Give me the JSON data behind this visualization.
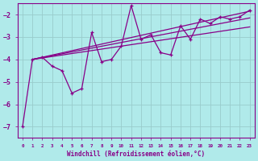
{
  "xlabel": "Windchill (Refroidissement éolien,°C)",
  "background_color": "#b0eaea",
  "line_color": "#880088",
  "grid_color": "#99cccc",
  "x_values": [
    0,
    1,
    2,
    3,
    4,
    5,
    6,
    7,
    8,
    9,
    10,
    11,
    12,
    13,
    14,
    15,
    16,
    17,
    18,
    19,
    20,
    21,
    22,
    23
  ],
  "line_main": [
    -7.0,
    -4.0,
    -3.9,
    -4.3,
    -4.5,
    -5.5,
    -5.3,
    -2.8,
    -4.1,
    -4.0,
    -3.4,
    -1.6,
    -3.1,
    -2.9,
    -3.7,
    -3.8,
    -2.5,
    -3.1,
    -2.2,
    -2.4,
    -2.1,
    -2.2,
    -2.1,
    -1.8
  ],
  "trend1_x": [
    1,
    23
  ],
  "trend1_y": [
    -4.0,
    -1.85
  ],
  "trend2_x": [
    1,
    23
  ],
  "trend2_y": [
    -4.0,
    -2.15
  ],
  "trend3_x": [
    1,
    23
  ],
  "trend3_y": [
    -4.0,
    -2.55
  ],
  "ylim": [
    -7.5,
    -1.5
  ],
  "xlim": [
    -0.5,
    23.5
  ],
  "yticks": [
    -7,
    -6,
    -5,
    -4,
    -3,
    -2
  ],
  "xticks": [
    0,
    1,
    2,
    3,
    4,
    5,
    6,
    7,
    8,
    9,
    10,
    11,
    12,
    13,
    14,
    15,
    16,
    17,
    18,
    19,
    20,
    21,
    22,
    23
  ]
}
